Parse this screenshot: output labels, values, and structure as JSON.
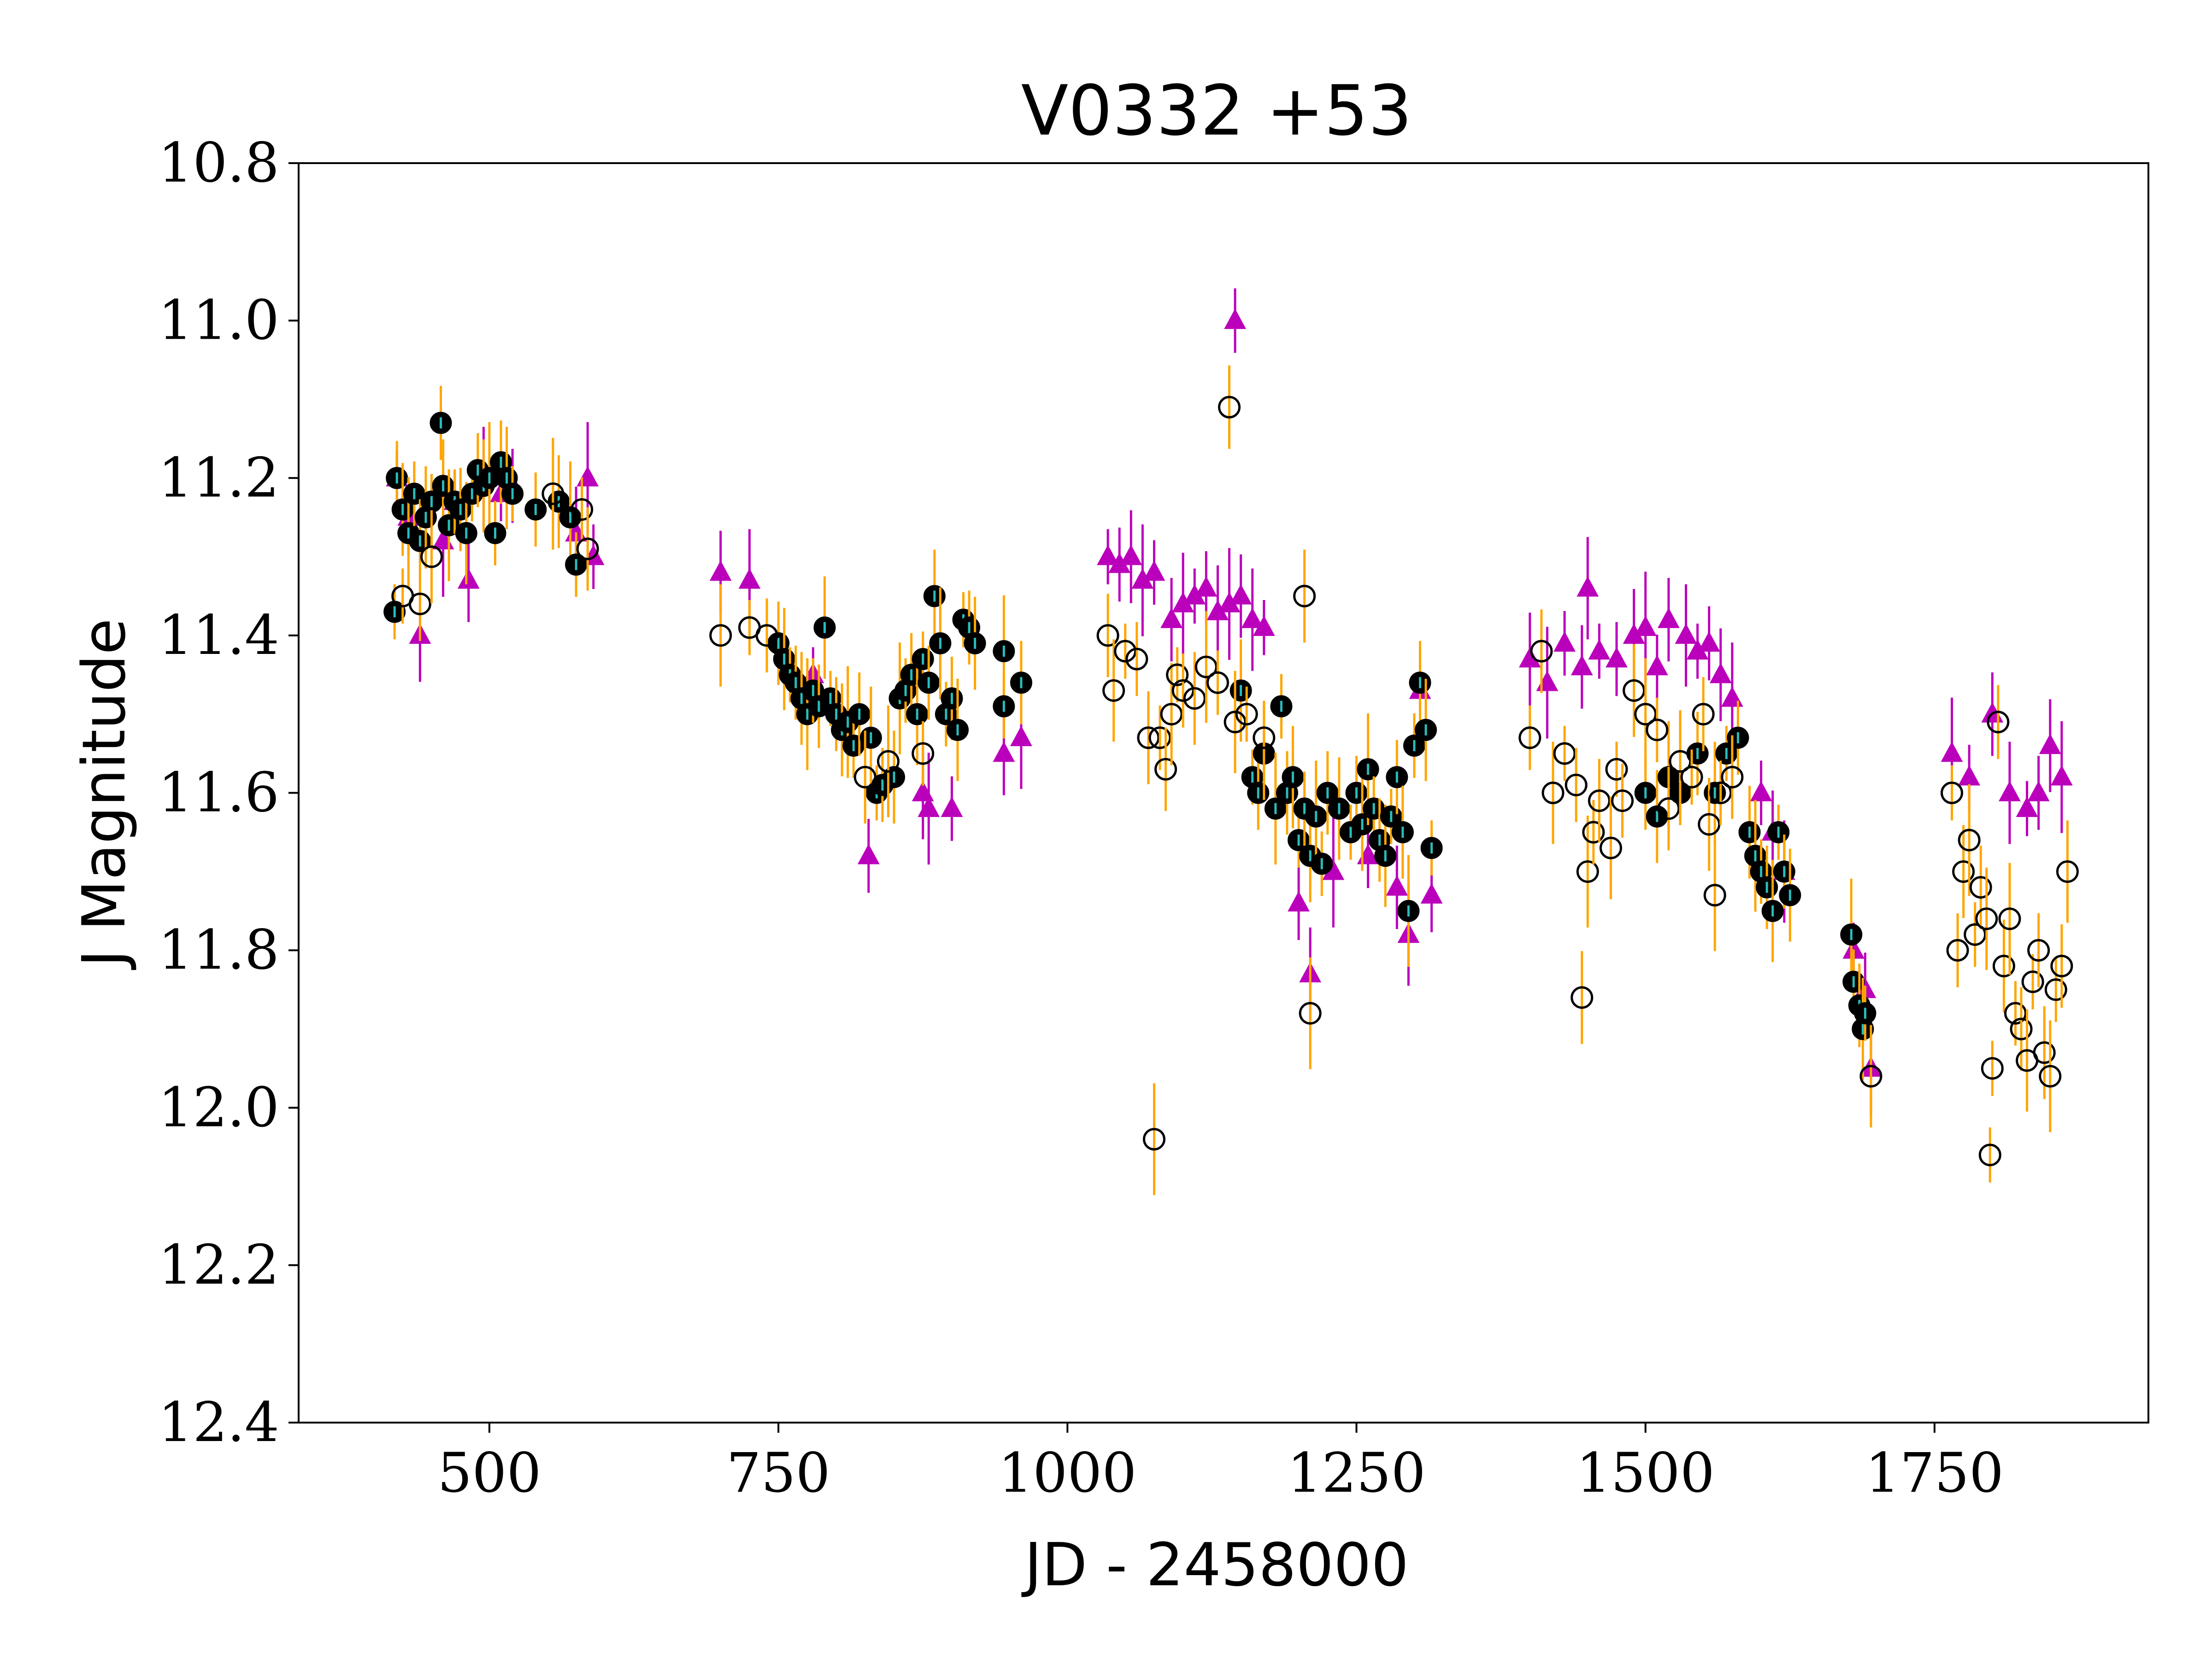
{
  "chart_data": {
    "type": "scatter",
    "title": "V0332 +53",
    "xlabel": "JD - 2458000",
    "ylabel": "J Magnitude",
    "xlim": [
      335,
      1935
    ],
    "ylim": [
      10.8,
      12.4
    ],
    "y_inverted": true,
    "xticks": [
      500,
      750,
      1000,
      1250,
      1500,
      1750
    ],
    "xtick_labels": [
      "500",
      "750",
      "1000",
      "1250",
      "1500",
      "1750"
    ],
    "yticks": [
      10.8,
      11.0,
      11.2,
      11.4,
      11.6,
      11.8,
      12.0,
      12.2,
      12.4
    ],
    "ytick_labels": [
      "10.8",
      "11.0",
      "11.2",
      "11.4",
      "11.6",
      "11.8",
      "12.0",
      "12.2",
      "12.4"
    ],
    "grid": false,
    "series": [
      {
        "name": "triangle",
        "marker": "triangle-up",
        "color": "#bb00bb",
        "errcolor": "#bb00bb",
        "points": [
          [
            420,
            11.2
          ],
          [
            430,
            11.25
          ],
          [
            440,
            11.4
          ],
          [
            460,
            11.28
          ],
          [
            470,
            11.23
          ],
          [
            482,
            11.33
          ],
          [
            495,
            11.2
          ],
          [
            510,
            11.22
          ],
          [
            520,
            11.21
          ],
          [
            575,
            11.27
          ],
          [
            585,
            11.2
          ],
          [
            590,
            11.3
          ],
          [
            700,
            11.32
          ],
          [
            725,
            11.33
          ],
          [
            780,
            11.45
          ],
          [
            828,
            11.68
          ],
          [
            875,
            11.6
          ],
          [
            880,
            11.62
          ],
          [
            900,
            11.62
          ],
          [
            945,
            11.55
          ],
          [
            960,
            11.53
          ],
          [
            1035,
            11.3
          ],
          [
            1045,
            11.31
          ],
          [
            1055,
            11.3
          ],
          [
            1065,
            11.33
          ],
          [
            1075,
            11.32
          ],
          [
            1090,
            11.38
          ],
          [
            1100,
            11.36
          ],
          [
            1110,
            11.35
          ],
          [
            1120,
            11.34
          ],
          [
            1130,
            11.37
          ],
          [
            1140,
            11.36
          ],
          [
            1145,
            11.0
          ],
          [
            1150,
            11.35
          ],
          [
            1160,
            11.38
          ],
          [
            1170,
            11.39
          ],
          [
            1200,
            11.74
          ],
          [
            1210,
            11.83
          ],
          [
            1230,
            11.7
          ],
          [
            1260,
            11.68
          ],
          [
            1285,
            11.72
          ],
          [
            1295,
            11.78
          ],
          [
            1305,
            11.47
          ],
          [
            1315,
            11.73
          ],
          [
            1400,
            11.43
          ],
          [
            1415,
            11.46
          ],
          [
            1430,
            11.41
          ],
          [
            1445,
            11.44
          ],
          [
            1450,
            11.34
          ],
          [
            1460,
            11.42
          ],
          [
            1475,
            11.43
          ],
          [
            1490,
            11.4
          ],
          [
            1500,
            11.39
          ],
          [
            1510,
            11.44
          ],
          [
            1520,
            11.38
          ],
          [
            1535,
            11.4
          ],
          [
            1545,
            11.42
          ],
          [
            1555,
            11.41
          ],
          [
            1565,
            11.45
          ],
          [
            1575,
            11.48
          ],
          [
            1600,
            11.6
          ],
          [
            1610,
            11.65
          ],
          [
            1620,
            11.7
          ],
          [
            1680,
            11.8
          ],
          [
            1690,
            11.85
          ],
          [
            1695,
            11.95
          ],
          [
            1765,
            11.55
          ],
          [
            1780,
            11.58
          ],
          [
            1800,
            11.5
          ],
          [
            1815,
            11.6
          ],
          [
            1830,
            11.62
          ],
          [
            1840,
            11.6
          ],
          [
            1850,
            11.54
          ],
          [
            1860,
            11.58
          ]
        ]
      },
      {
        "name": "filled circle",
        "marker": "circle-filled",
        "color": "#000000",
        "errcolor": "#ffa500",
        "points": [
          [
            418,
            11.37
          ],
          [
            420,
            11.2
          ],
          [
            425,
            11.24
          ],
          [
            430,
            11.27
          ],
          [
            435,
            11.22
          ],
          [
            440,
            11.28
          ],
          [
            445,
            11.25
          ],
          [
            450,
            11.23
          ],
          [
            458,
            11.13
          ],
          [
            460,
            11.21
          ],
          [
            465,
            11.26
          ],
          [
            470,
            11.23
          ],
          [
            475,
            11.24
          ],
          [
            480,
            11.27
          ],
          [
            485,
            11.22
          ],
          [
            490,
            11.19
          ],
          [
            495,
            11.21
          ],
          [
            500,
            11.2
          ],
          [
            505,
            11.27
          ],
          [
            510,
            11.18
          ],
          [
            515,
            11.2
          ],
          [
            520,
            11.22
          ],
          [
            540,
            11.24
          ],
          [
            560,
            11.23
          ],
          [
            570,
            11.25
          ],
          [
            575,
            11.31
          ],
          [
            750,
            11.41
          ],
          [
            755,
            11.43
          ],
          [
            760,
            11.45
          ],
          [
            765,
            11.46
          ],
          [
            770,
            11.48
          ],
          [
            775,
            11.5
          ],
          [
            780,
            11.47
          ],
          [
            785,
            11.49
          ],
          [
            790,
            11.39
          ],
          [
            795,
            11.48
          ],
          [
            800,
            11.5
          ],
          [
            805,
            11.52
          ],
          [
            810,
            11.51
          ],
          [
            815,
            11.54
          ],
          [
            820,
            11.5
          ],
          [
            830,
            11.53
          ],
          [
            835,
            11.6
          ],
          [
            840,
            11.59
          ],
          [
            850,
            11.58
          ],
          [
            855,
            11.48
          ],
          [
            860,
            11.47
          ],
          [
            865,
            11.45
          ],
          [
            870,
            11.5
          ],
          [
            875,
            11.43
          ],
          [
            880,
            11.46
          ],
          [
            885,
            11.35
          ],
          [
            890,
            11.41
          ],
          [
            895,
            11.5
          ],
          [
            900,
            11.48
          ],
          [
            905,
            11.52
          ],
          [
            910,
            11.38
          ],
          [
            915,
            11.39
          ],
          [
            920,
            11.41
          ],
          [
            945,
            11.42
          ],
          [
            945,
            11.49
          ],
          [
            960,
            11.46
          ],
          [
            1150,
            11.47
          ],
          [
            1160,
            11.58
          ],
          [
            1165,
            11.6
          ],
          [
            1170,
            11.55
          ],
          [
            1180,
            11.62
          ],
          [
            1185,
            11.49
          ],
          [
            1190,
            11.6
          ],
          [
            1195,
            11.58
          ],
          [
            1200,
            11.66
          ],
          [
            1205,
            11.62
          ],
          [
            1210,
            11.68
          ],
          [
            1215,
            11.63
          ],
          [
            1220,
            11.69
          ],
          [
            1225,
            11.6
          ],
          [
            1235,
            11.62
          ],
          [
            1245,
            11.65
          ],
          [
            1250,
            11.6
          ],
          [
            1255,
            11.64
          ],
          [
            1260,
            11.57
          ],
          [
            1265,
            11.62
          ],
          [
            1270,
            11.66
          ],
          [
            1275,
            11.68
          ],
          [
            1280,
            11.63
          ],
          [
            1285,
            11.58
          ],
          [
            1290,
            11.65
          ],
          [
            1295,
            11.75
          ],
          [
            1300,
            11.54
          ],
          [
            1305,
            11.46
          ],
          [
            1310,
            11.52
          ],
          [
            1315,
            11.67
          ],
          [
            1500,
            11.6
          ],
          [
            1510,
            11.63
          ],
          [
            1520,
            11.58
          ],
          [
            1530,
            11.6
          ],
          [
            1545,
            11.55
          ],
          [
            1560,
            11.6
          ],
          [
            1570,
            11.55
          ],
          [
            1580,
            11.53
          ],
          [
            1590,
            11.65
          ],
          [
            1595,
            11.68
          ],
          [
            1600,
            11.7
          ],
          [
            1605,
            11.72
          ],
          [
            1610,
            11.75
          ],
          [
            1615,
            11.65
          ],
          [
            1620,
            11.7
          ],
          [
            1625,
            11.73
          ],
          [
            1678,
            11.78
          ],
          [
            1680,
            11.84
          ],
          [
            1685,
            11.87
          ],
          [
            1688,
            11.9
          ],
          [
            1690,
            11.88
          ]
        ]
      },
      {
        "name": "open circle",
        "marker": "circle-open",
        "color": "#000000",
        "errcolor": "#ffa500",
        "points": [
          [
            425,
            11.35
          ],
          [
            440,
            11.36
          ],
          [
            450,
            11.3
          ],
          [
            555,
            11.22
          ],
          [
            580,
            11.24
          ],
          [
            585,
            11.29
          ],
          [
            700,
            11.4
          ],
          [
            725,
            11.39
          ],
          [
            740,
            11.4
          ],
          [
            825,
            11.58
          ],
          [
            845,
            11.56
          ],
          [
            875,
            11.55
          ],
          [
            1035,
            11.4
          ],
          [
            1040,
            11.47
          ],
          [
            1050,
            11.42
          ],
          [
            1060,
            11.43
          ],
          [
            1070,
            11.53
          ],
          [
            1075,
            12.04
          ],
          [
            1080,
            11.53
          ],
          [
            1085,
            11.57
          ],
          [
            1090,
            11.5
          ],
          [
            1095,
            11.45
          ],
          [
            1100,
            11.47
          ],
          [
            1110,
            11.48
          ],
          [
            1120,
            11.44
          ],
          [
            1130,
            11.46
          ],
          [
            1140,
            11.11
          ],
          [
            1145,
            11.51
          ],
          [
            1155,
            11.5
          ],
          [
            1170,
            11.53
          ],
          [
            1205,
            11.35
          ],
          [
            1210,
            11.88
          ],
          [
            1400,
            11.53
          ],
          [
            1410,
            11.42
          ],
          [
            1420,
            11.6
          ],
          [
            1430,
            11.55
          ],
          [
            1440,
            11.59
          ],
          [
            1445,
            11.86
          ],
          [
            1450,
            11.7
          ],
          [
            1455,
            11.65
          ],
          [
            1460,
            11.61
          ],
          [
            1470,
            11.67
          ],
          [
            1475,
            11.57
          ],
          [
            1480,
            11.61
          ],
          [
            1490,
            11.47
          ],
          [
            1500,
            11.5
          ],
          [
            1510,
            11.52
          ],
          [
            1520,
            11.62
          ],
          [
            1530,
            11.56
          ],
          [
            1540,
            11.58
          ],
          [
            1550,
            11.5
          ],
          [
            1555,
            11.64
          ],
          [
            1560,
            11.73
          ],
          [
            1565,
            11.6
          ],
          [
            1575,
            11.58
          ],
          [
            1695,
            11.96
          ],
          [
            1765,
            11.6
          ],
          [
            1770,
            11.8
          ],
          [
            1775,
            11.7
          ],
          [
            1780,
            11.66
          ],
          [
            1785,
            11.78
          ],
          [
            1790,
            11.72
          ],
          [
            1795,
            11.76
          ],
          [
            1800,
            11.95
          ],
          [
            1805,
            11.51
          ],
          [
            1810,
            11.82
          ],
          [
            1815,
            11.76
          ],
          [
            1820,
            11.88
          ],
          [
            1825,
            11.9
          ],
          [
            1830,
            11.94
          ],
          [
            1835,
            11.84
          ],
          [
            1840,
            11.8
          ],
          [
            1845,
            11.93
          ],
          [
            1850,
            11.96
          ],
          [
            1855,
            11.85
          ],
          [
            1860,
            11.82
          ],
          [
            1865,
            11.7
          ],
          [
            1798,
            12.06
          ]
        ]
      }
    ]
  }
}
